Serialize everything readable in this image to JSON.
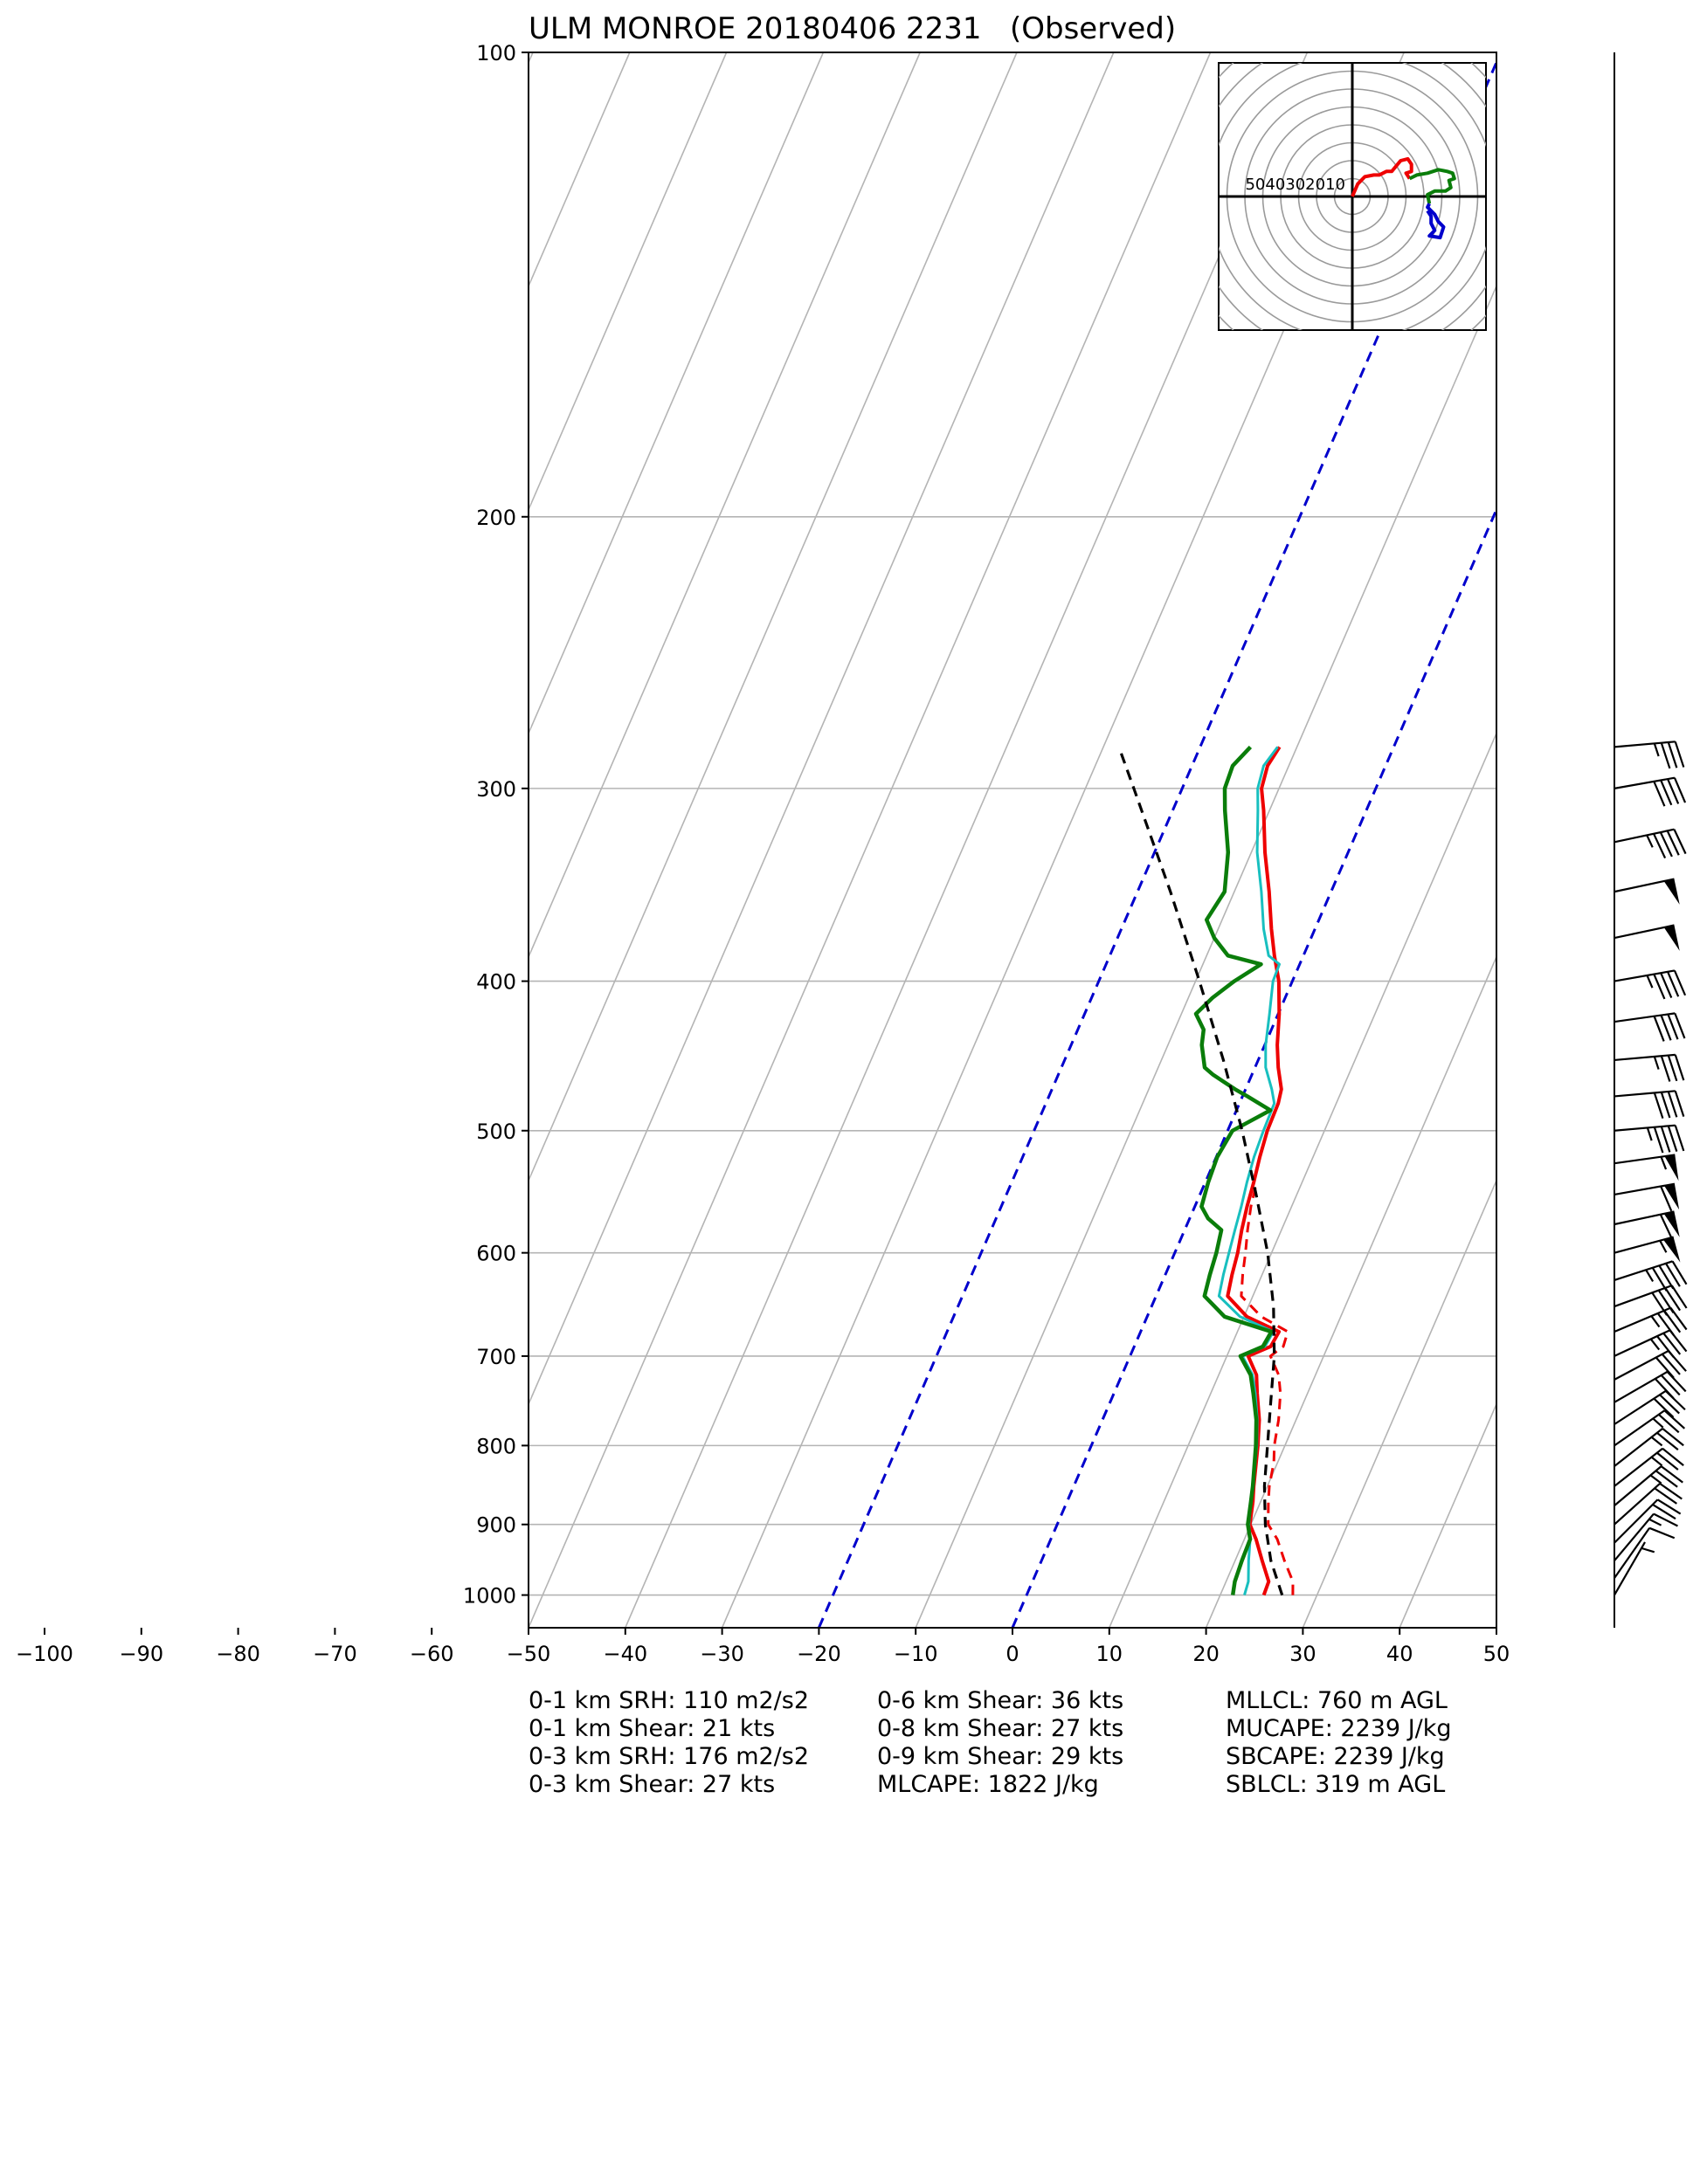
{
  "chart_data": {
    "type": "line",
    "subtype": "skew-T log-P sounding",
    "title": "ULM MONROE 20180406 2231   (Observed)",
    "xlabel": "",
    "ylabel": "",
    "x_ticks": [
      -100,
      -90,
      -80,
      -70,
      -60,
      -50,
      -40,
      -30,
      -20,
      -10,
      0,
      10,
      20,
      30,
      40,
      50
    ],
    "y_ticks": [
      100,
      200,
      300,
      400,
      500,
      600,
      700,
      800,
      900,
      1000
    ],
    "xlim": [
      -50,
      50
    ],
    "ylim": [
      1050,
      100
    ],
    "y_scale": "log",
    "grid": true,
    "colors": {
      "temperature": "#ee0000",
      "virtual_temperature": "#ee0000",
      "wetbulb": "#18bfbf",
      "dewpoint": "#0a7d0a",
      "parcel": "#000000",
      "isotherm_highlight": "#0000cc",
      "grid": "#b4b4b4",
      "hodo_lower": "#ee0000",
      "hodo_mid": "#0a7d0a",
      "hodo_upper": "#0000cc"
    },
    "series": [
      {
        "style": "solid",
        "points": [
          [
            1000,
            24.5
          ],
          [
            980,
            24.4
          ],
          [
            950,
            22.8
          ],
          [
            920,
            21.2
          ],
          [
            900,
            19.9
          ],
          [
            870,
            19.2
          ],
          [
            850,
            18.6
          ],
          [
            800,
            17.2
          ],
          [
            770,
            16.2
          ],
          [
            740,
            14.8
          ],
          [
            720,
            13.9
          ],
          [
            700,
            12.2
          ],
          [
            690,
            14.1
          ],
          [
            675,
            14.3
          ],
          [
            660,
            10.3
          ],
          [
            640,
            7.4
          ],
          [
            620,
            6.9
          ],
          [
            600,
            6.5
          ],
          [
            580,
            5.9
          ],
          [
            560,
            5.4
          ],
          [
            540,
            5.0
          ],
          [
            520,
            4.5
          ],
          [
            500,
            4.1
          ],
          [
            480,
            4.0
          ],
          [
            470,
            3.7
          ],
          [
            455,
            2.4
          ],
          [
            440,
            1.3
          ],
          [
            420,
            0.1
          ],
          [
            400,
            -1.4
          ],
          [
            385,
            -3.0
          ],
          [
            370,
            -4.5
          ],
          [
            350,
            -6.4
          ],
          [
            330,
            -8.6
          ],
          [
            310,
            -10.6
          ],
          [
            300,
            -11.8
          ],
          [
            290,
            -12.2
          ],
          [
            282,
            -11.8
          ]
        ]
      },
      {
        "style": "dashed",
        "points": [
          [
            1000,
            27.5
          ],
          [
            980,
            26.9
          ],
          [
            950,
            25.1
          ],
          [
            920,
            23.4
          ],
          [
            900,
            21.8
          ],
          [
            870,
            20.8
          ],
          [
            850,
            20.2
          ],
          [
            820,
            19.6
          ],
          [
            800,
            18.9
          ],
          [
            770,
            18.2
          ],
          [
            740,
            17.2
          ],
          [
            720,
            16.2
          ],
          [
            700,
            14.5
          ],
          [
            690,
            15.4
          ],
          [
            675,
            15.2
          ],
          [
            660,
            11.8
          ],
          [
            640,
            8.8
          ],
          [
            620,
            8.0
          ],
          [
            600,
            7.3
          ],
          [
            580,
            6.5
          ],
          [
            560,
            5.8
          ],
          [
            540,
            5.3
          ]
        ]
      },
      {
        "style": "solid",
        "points": [
          [
            1000,
            22.5
          ],
          [
            980,
            22.3
          ],
          [
            950,
            21.4
          ],
          [
            920,
            20.6
          ],
          [
            900,
            19.8
          ],
          [
            870,
            19.0
          ],
          [
            850,
            18.5
          ],
          [
            800,
            17.1
          ],
          [
            770,
            16.0
          ],
          [
            740,
            14.6
          ],
          [
            720,
            13.5
          ],
          [
            700,
            11.6
          ],
          [
            690,
            13.5
          ],
          [
            675,
            13.7
          ],
          [
            660,
            9.6
          ],
          [
            640,
            6.5
          ],
          [
            620,
            6.0
          ],
          [
            600,
            5.6
          ],
          [
            580,
            5.2
          ],
          [
            560,
            4.8
          ],
          [
            540,
            4.3
          ],
          [
            520,
            3.9
          ],
          [
            500,
            3.7
          ],
          [
            480,
            3.6
          ],
          [
            470,
            2.7
          ],
          [
            455,
            1.1
          ],
          [
            440,
            0.1
          ],
          [
            420,
            -0.9
          ],
          [
            400,
            -2.0
          ],
          [
            390,
            -2.1
          ],
          [
            385,
            -3.6
          ],
          [
            370,
            -5.3
          ],
          [
            350,
            -7.2
          ],
          [
            330,
            -9.4
          ],
          [
            310,
            -11.2
          ],
          [
            300,
            -12.2
          ],
          [
            290,
            -12.6
          ],
          [
            282,
            -12.0
          ]
        ]
      },
      {
        "style": "solid",
        "points": [
          [
            1000,
            21.3
          ],
          [
            980,
            20.9
          ],
          [
            950,
            20.7
          ],
          [
            920,
            20.6
          ],
          [
            900,
            19.7
          ],
          [
            870,
            19.0
          ],
          [
            850,
            18.5
          ],
          [
            800,
            17.0
          ],
          [
            770,
            15.9
          ],
          [
            740,
            14.4
          ],
          [
            720,
            13.3
          ],
          [
            700,
            11.4
          ],
          [
            690,
            13.3
          ],
          [
            675,
            13.5
          ],
          [
            660,
            8.0
          ],
          [
            640,
            5.0
          ],
          [
            620,
            4.6
          ],
          [
            600,
            4.3
          ],
          [
            580,
            3.8
          ],
          [
            570,
            1.9
          ],
          [
            560,
            0.7
          ],
          [
            540,
            0.3
          ],
          [
            520,
            0.1
          ],
          [
            500,
            0.5
          ],
          [
            485,
            3.5
          ],
          [
            475,
            0.5
          ],
          [
            470,
            -1.1
          ],
          [
            460,
            -4.0
          ],
          [
            455,
            -5.2
          ],
          [
            440,
            -6.5
          ],
          [
            430,
            -7.0
          ],
          [
            420,
            -8.5
          ],
          [
            410,
            -7.5
          ],
          [
            400,
            -6.0
          ],
          [
            390,
            -4.0
          ],
          [
            385,
            -7.8
          ],
          [
            375,
            -10.0
          ],
          [
            365,
            -11.6
          ],
          [
            350,
            -11.0
          ],
          [
            330,
            -12.4
          ],
          [
            310,
            -14.6
          ],
          [
            300,
            -15.6
          ],
          [
            290,
            -15.8
          ],
          [
            282,
            -14.8
          ]
        ]
      },
      {
        "style": "dashed",
        "points": [
          [
            1000,
            26.4
          ],
          [
            950,
            23.7
          ],
          [
            900,
            21.5
          ],
          [
            850,
            19.7
          ],
          [
            800,
            18.2
          ],
          [
            750,
            16.6
          ],
          [
            700,
            14.9
          ],
          [
            650,
            12.6
          ],
          [
            600,
            9.6
          ],
          [
            550,
            5.8
          ],
          [
            500,
            1.5
          ],
          [
            450,
            -3.6
          ],
          [
            400,
            -9.6
          ],
          [
            350,
            -16.6
          ],
          [
            300,
            -25.0
          ],
          [
            282,
            -28.4
          ]
        ]
      }
    ],
    "isotherms_highlighted": [
      -20,
      0
    ],
    "wind_profile": [
      [
        1000,
        5,
        210
      ],
      [
        975,
        10,
        215
      ],
      [
        950,
        15,
        220
      ],
      [
        925,
        20,
        225
      ],
      [
        900,
        22,
        228
      ],
      [
        875,
        24,
        230
      ],
      [
        850,
        25,
        232
      ],
      [
        825,
        25,
        232
      ],
      [
        800,
        25,
        235
      ],
      [
        775,
        28,
        237
      ],
      [
        750,
        30,
        240
      ],
      [
        725,
        32,
        242
      ],
      [
        700,
        33,
        245
      ],
      [
        675,
        35,
        247
      ],
      [
        650,
        40,
        250
      ],
      [
        625,
        45,
        252
      ],
      [
        600,
        55,
        255
      ],
      [
        575,
        58,
        258
      ],
      [
        550,
        60,
        260
      ],
      [
        525,
        55,
        262
      ],
      [
        500,
        45,
        265
      ],
      [
        475,
        40,
        265
      ],
      [
        450,
        35,
        265
      ],
      [
        425,
        40,
        262
      ],
      [
        400,
        45,
        260
      ],
      [
        375,
        50,
        258
      ],
      [
        350,
        50,
        258
      ],
      [
        325,
        45,
        258
      ],
      [
        300,
        40,
        260
      ],
      [
        282,
        35,
        265
      ]
    ],
    "hodograph": {
      "ring_labels": [
        "50",
        "40",
        "30",
        "20",
        "10"
      ],
      "segments": [
        {
          "points": [
            [
              0,
              0
            ],
            [
              3,
              7
            ],
            [
              7,
              11
            ],
            [
              12,
              12
            ],
            [
              15,
              12
            ],
            [
              19,
              14
            ],
            [
              22,
              14
            ],
            [
              27,
              20
            ],
            [
              31,
              21
            ],
            [
              33,
              18
            ],
            [
              33,
              14
            ],
            [
              30,
              13
            ],
            [
              32,
              10
            ]
          ]
        },
        {
          "points": [
            [
              32,
              10
            ],
            [
              36,
              12
            ],
            [
              42,
              13
            ],
            [
              48,
              15
            ],
            [
              53,
              14
            ],
            [
              56,
              13
            ],
            [
              57,
              10
            ],
            [
              54,
              9
            ],
            [
              55,
              5
            ],
            [
              52,
              3
            ],
            [
              46,
              3
            ],
            [
              42,
              1
            ],
            [
              43,
              -4
            ]
          ]
        },
        {
          "points": [
            [
              43,
              -4
            ],
            [
              42,
              -6
            ],
            [
              46,
              -10
            ],
            [
              48,
              -14
            ],
            [
              51,
              -17
            ],
            [
              49,
              -23
            ],
            [
              43,
              -22
            ],
            [
              46,
              -19
            ],
            [
              44,
              -15
            ],
            [
              44,
              -11
            ],
            [
              42,
              -8
            ]
          ]
        }
      ]
    },
    "stats": [
      [
        "0-1 km SRH: 110 m2/s2",
        "0-1 km Shear: 21 kts",
        "0-3 km SRH: 176 m2/s2",
        "0-3 km Shear: 27 kts"
      ],
      [
        "0-6 km Shear: 36 kts",
        "0-8 km Shear: 27 kts",
        "0-9 km Shear: 29 kts",
        "MLCAPE: 1822 J/kg"
      ],
      [
        "MLLCL: 760 m AGL",
        "MUCAPE: 2239 J/kg",
        "SBCAPE: 2239 J/kg",
        "SBLCL: 319 m AGL"
      ]
    ]
  }
}
